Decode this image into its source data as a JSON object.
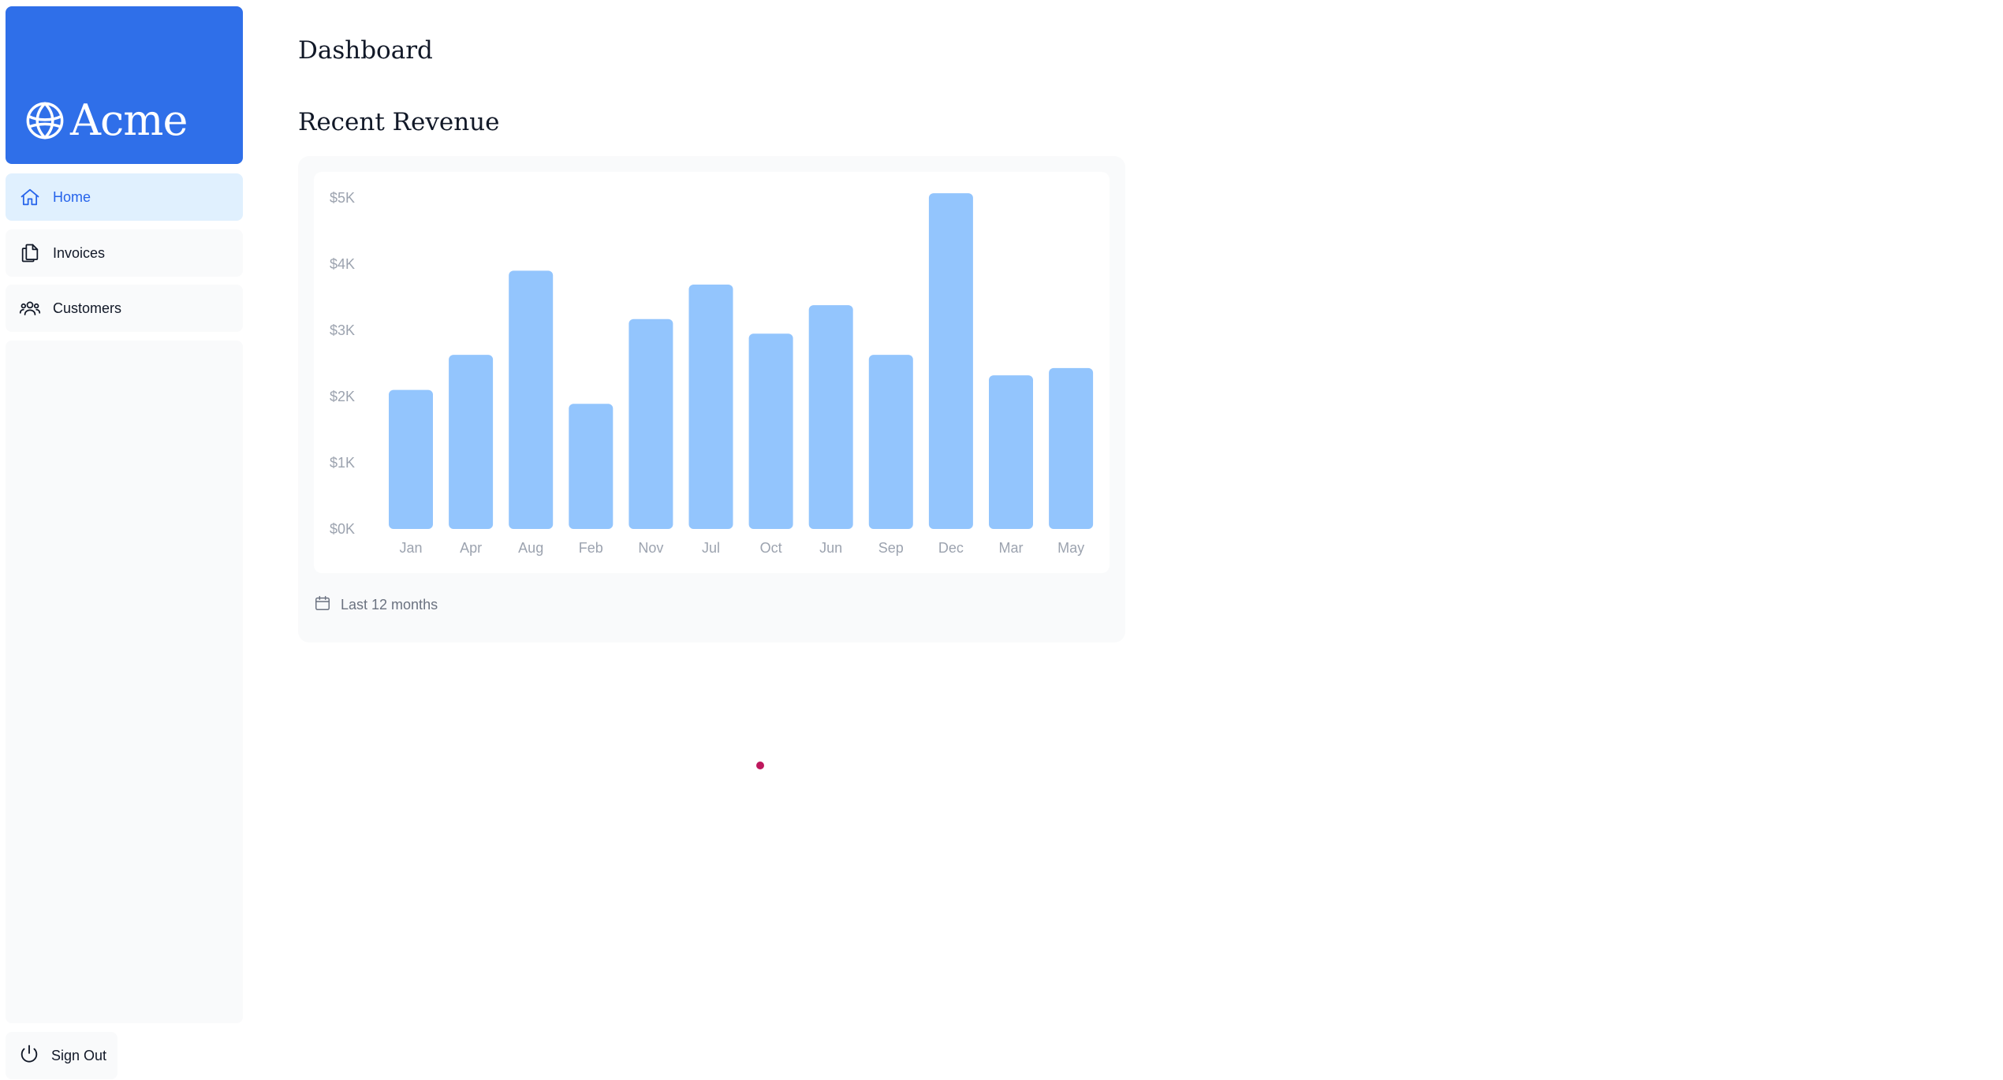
{
  "brand": {
    "name": "Acme",
    "color": "#2f6fe9"
  },
  "sidebar": {
    "items": [
      {
        "label": "Home",
        "icon": "home-icon",
        "active": true
      },
      {
        "label": "Invoices",
        "icon": "documents-icon",
        "active": false
      },
      {
        "label": "Customers",
        "icon": "users-icon",
        "active": false
      }
    ],
    "signout_label": "Sign Out",
    "signout_icon": "power-icon"
  },
  "main": {
    "title": "Dashboard",
    "revenue": {
      "title": "Recent Revenue",
      "footer_label": "Last 12 months",
      "footer_icon": "calendar-icon"
    }
  },
  "chart_data": {
    "type": "bar",
    "categories": [
      "Jan",
      "Apr",
      "Aug",
      "Feb",
      "Nov",
      "Jul",
      "Oct",
      "Jun",
      "Sep",
      "Dec",
      "Mar",
      "May"
    ],
    "values": [
      2100,
      2630,
      3900,
      1890,
      3170,
      3690,
      2950,
      3380,
      2630,
      5070,
      2320,
      2430
    ],
    "y_ticks": [
      "$5K",
      "$4K",
      "$3K",
      "$2K",
      "$1K",
      "$0K"
    ],
    "ylim": [
      0,
      5000
    ],
    "bar_color": "#93c5fd",
    "grid": false,
    "legend": "none"
  }
}
